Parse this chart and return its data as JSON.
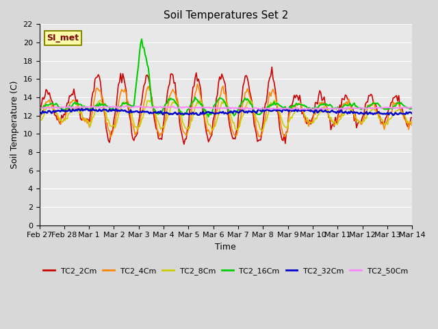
{
  "title": "Soil Temperatures Set 2",
  "xlabel": "Time",
  "ylabel": "Soil Temperature (C)",
  "ylim": [
    0,
    22
  ],
  "yticks": [
    0,
    2,
    4,
    6,
    8,
    10,
    12,
    14,
    16,
    18,
    20,
    22
  ],
  "series_colors": {
    "TC2_2Cm": "#cc0000",
    "TC2_4Cm": "#ff8800",
    "TC2_8Cm": "#cccc00",
    "TC2_16Cm": "#00cc00",
    "TC2_32Cm": "#0000cc",
    "TC2_50Cm": "#ff88ff"
  },
  "annotation_text": "SI_met",
  "annotation_color": "#800000",
  "annotation_bg": "#ffffaa",
  "x_tick_labels": [
    "Feb 27",
    "Feb 28",
    "Mar 1",
    "Mar 2",
    "Mar 3",
    "Mar 4",
    "Mar 5",
    "Mar 6",
    "Mar 7",
    "Mar 8",
    "Mar 9",
    "Mar 10",
    "Mar 11",
    "Mar 12",
    "Mar 13",
    "Mar 14"
  ],
  "n_points": 336
}
